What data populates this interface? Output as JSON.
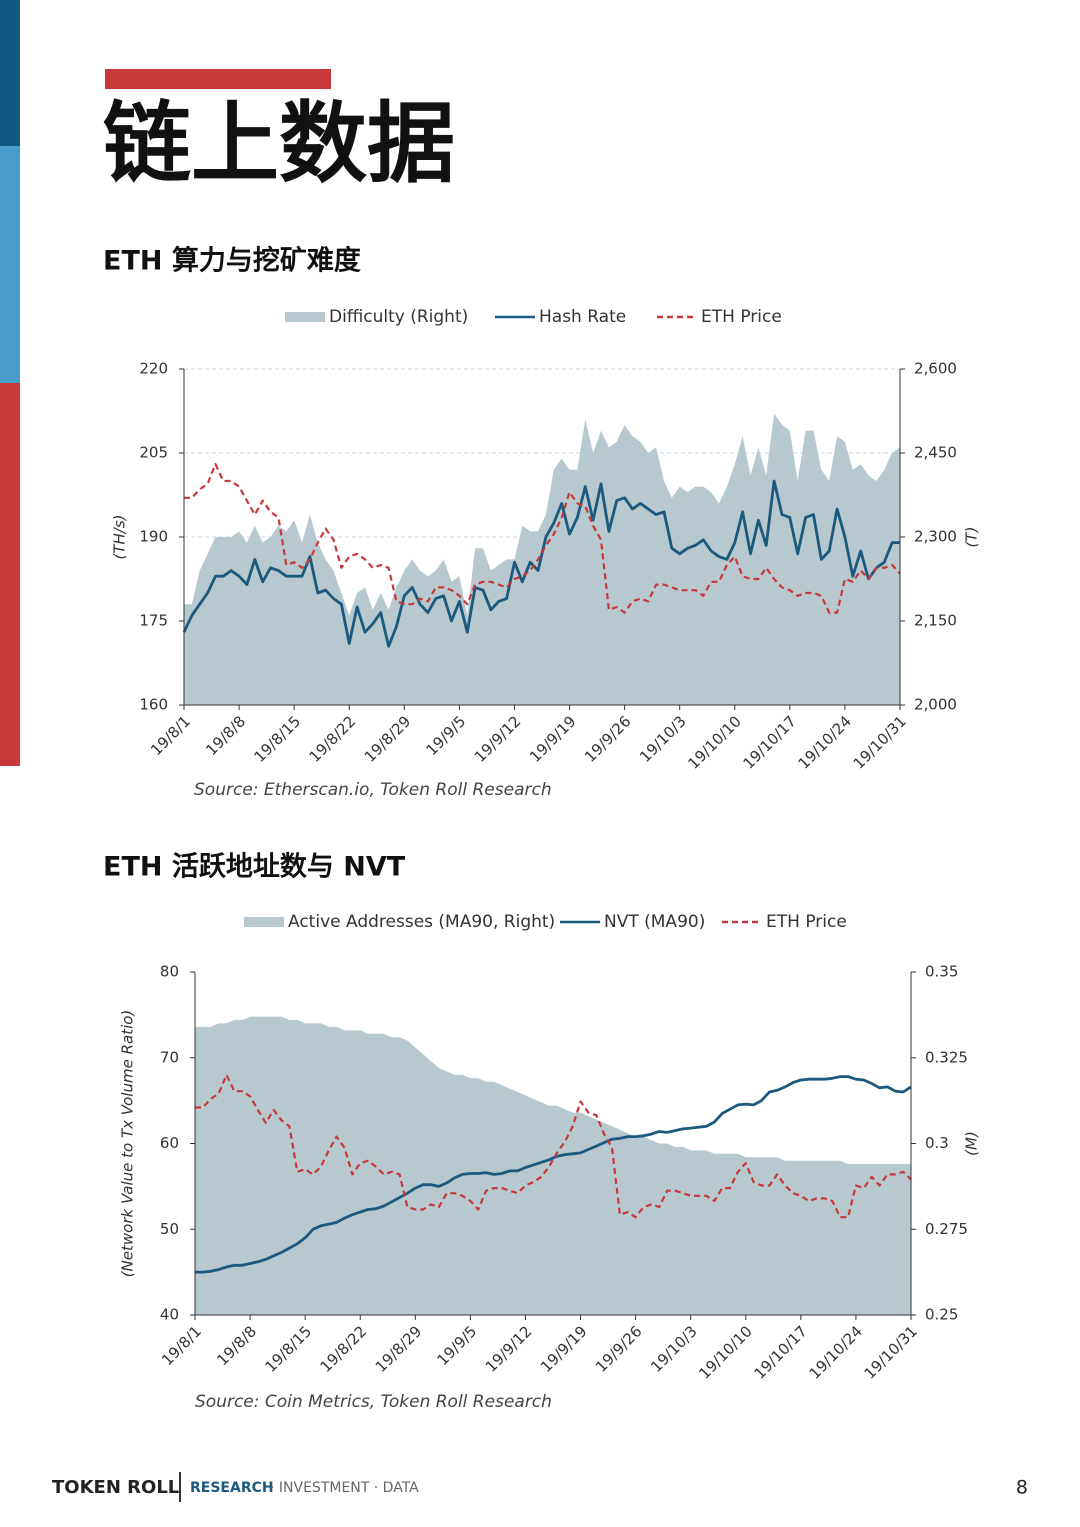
{
  "header": {
    "title": "链上数据"
  },
  "footer": {
    "brand": "TOKEN ROLL",
    "tagline_highlight": "RESEARCH",
    "tagline_rest": "· INVESTMENT · DATA",
    "page": "8"
  },
  "chart_data": [
    {
      "type": "line",
      "title": "ETH 算力与挖矿难度",
      "source": "Source: Etherscan.io, Token Roll Research",
      "y_label": "(TH/s)",
      "y2_label": "(T)",
      "grid": true,
      "categories": [
        "19/8/1",
        null,
        null,
        null,
        null,
        null,
        null,
        "19/8/8",
        null,
        null,
        null,
        null,
        null,
        null,
        "19/8/15",
        null,
        null,
        null,
        null,
        null,
        null,
        "19/8/22",
        null,
        null,
        null,
        null,
        null,
        null,
        "19/8/29",
        null,
        null,
        null,
        null,
        null,
        null,
        "19/9/5",
        null,
        null,
        null,
        null,
        null,
        null,
        "19/9/12",
        null,
        null,
        null,
        null,
        null,
        null,
        "19/9/19",
        null,
        null,
        null,
        null,
        null,
        null,
        "19/9/26",
        null,
        null,
        null,
        null,
        null,
        null,
        "19/10/3",
        null,
        null,
        null,
        null,
        null,
        null,
        "19/10/10",
        null,
        null,
        null,
        null,
        null,
        null,
        "19/10/17",
        null,
        null,
        null,
        null,
        null,
        null,
        "19/10/24",
        null,
        null,
        null,
        null,
        null,
        null,
        "19/10/31"
      ],
      "ylim": [
        160,
        220
      ],
      "yticks": [
        160,
        175,
        190,
        205,
        220
      ],
      "y2lim": [
        2000,
        2600
      ],
      "y2ticks": [
        {
          "value": 2000,
          "label": "2,000"
        },
        {
          "value": 2150,
          "label": "2,150"
        },
        {
          "value": 2300,
          "label": "2,300"
        },
        {
          "value": 2450,
          "label": "2,450"
        },
        {
          "value": 2600,
          "label": "2,600"
        }
      ],
      "series": [
        {
          "name": "Difficulty (Right)",
          "kind": "area",
          "axis": "y2",
          "color": "#b7c8ce",
          "values": [
            2180,
            2180,
            2240,
            2270,
            2300,
            2300,
            2300,
            2310,
            2290,
            2320,
            2290,
            2300,
            2320,
            2310,
            2330,
            2290,
            2340,
            2290,
            2260,
            2240,
            2200,
            2160,
            2200,
            2210,
            2170,
            2200,
            2170,
            2210,
            2240,
            2260,
            2240,
            2230,
            2240,
            2260,
            2220,
            2230,
            2160,
            2280,
            2280,
            2240,
            2250,
            2260,
            2260,
            2320,
            2310,
            2310,
            2340,
            2420,
            2440,
            2420,
            2420,
            2510,
            2450,
            2490,
            2460,
            2470,
            2500,
            2480,
            2470,
            2450,
            2460,
            2400,
            2370,
            2390,
            2380,
            2390,
            2390,
            2380,
            2360,
            2390,
            2430,
            2480,
            2410,
            2460,
            2410,
            2520,
            2500,
            2490,
            2400,
            2490,
            2490,
            2420,
            2400,
            2480,
            2470,
            2420,
            2430,
            2410,
            2400,
            2420,
            2450,
            2460
          ]
        },
        {
          "name": "Hash Rate",
          "kind": "line",
          "color": "#1b5a7e",
          "values": [
            173,
            176,
            178,
            180,
            183,
            183,
            184,
            183,
            181.5,
            186,
            182,
            184.5,
            184,
            183,
            183,
            183,
            186.5,
            180,
            180.5,
            179,
            178,
            171,
            177.5,
            173,
            174.5,
            176.5,
            170.5,
            174,
            179.5,
            181,
            178,
            176.5,
            179,
            179.5,
            175,
            178.5,
            173,
            181,
            180.5,
            177,
            178.5,
            179,
            185.5,
            182,
            185.5,
            184,
            190,
            192.5,
            196,
            190.5,
            193.5,
            199,
            193,
            199.5,
            191,
            196.5,
            197,
            195,
            196,
            195,
            194,
            194.5,
            188,
            187,
            188,
            188.5,
            189.5,
            187.5,
            186.5,
            186,
            189,
            194.5,
            187,
            193,
            188.5,
            200,
            194,
            193.5,
            187,
            193.5,
            194,
            186,
            187.5,
            195,
            190,
            183,
            187.5,
            182.5,
            184.5,
            185.5,
            189,
            189
          ]
        },
        {
          "name": "ETH Price",
          "kind": "dashed",
          "color": "#c8373a",
          "values": [
            197,
            197,
            198.5,
            199.5,
            203,
            200,
            200,
            199,
            196.5,
            194,
            196.5,
            194.5,
            193.5,
            185,
            185.5,
            184.5,
            186,
            189,
            191.5,
            189.5,
            184.5,
            186.5,
            187,
            186,
            184.5,
            185,
            184.5,
            178.5,
            178,
            178,
            179,
            178.5,
            181,
            181,
            180.5,
            179.5,
            178,
            181.5,
            182,
            182,
            181.5,
            181,
            182.5,
            183,
            184,
            186,
            188.5,
            190.5,
            193.5,
            198,
            196,
            195.5,
            192,
            189.5,
            177,
            177.5,
            176.5,
            178.5,
            179,
            178.5,
            181.5,
            181.5,
            181,
            180.5,
            180.5,
            180.5,
            179.5,
            182,
            182,
            185,
            186.5,
            183,
            182.5,
            182.5,
            184.5,
            182.5,
            181,
            180.5,
            179.5,
            180,
            180,
            179.5,
            176.5,
            176.5,
            182.5,
            182,
            184,
            182.5,
            184.5,
            184.5,
            185,
            183.5
          ]
        }
      ]
    },
    {
      "type": "line",
      "title": "ETH 活跃地址数与 NVT",
      "source": "Source: Coin Metrics, Token Roll Research",
      "y_label": "(Network Value to Tx Volume Ratio)",
      "y2_label": "(M)",
      "grid": false,
      "categories": [
        "19/8/1",
        null,
        null,
        null,
        null,
        null,
        null,
        "19/8/8",
        null,
        null,
        null,
        null,
        null,
        null,
        "19/8/15",
        null,
        null,
        null,
        null,
        null,
        null,
        "19/8/22",
        null,
        null,
        null,
        null,
        null,
        null,
        "19/8/29",
        null,
        null,
        null,
        null,
        null,
        null,
        "19/9/5",
        null,
        null,
        null,
        null,
        null,
        null,
        "19/9/12",
        null,
        null,
        null,
        null,
        null,
        null,
        "19/9/19",
        null,
        null,
        null,
        null,
        null,
        null,
        "19/9/26",
        null,
        null,
        null,
        null,
        null,
        null,
        "19/10/3",
        null,
        null,
        null,
        null,
        null,
        null,
        "19/10/10",
        null,
        null,
        null,
        null,
        null,
        null,
        "19/10/17",
        null,
        null,
        null,
        null,
        null,
        null,
        "19/10/24",
        null,
        null,
        null,
        null,
        null,
        null,
        "19/10/31"
      ],
      "ylim": [
        40,
        80
      ],
      "yticks": [
        40,
        50,
        60,
        70,
        80
      ],
      "y2lim": [
        0.25,
        0.35
      ],
      "y2ticks": [
        0.25,
        0.275,
        0.3,
        0.325,
        0.35
      ],
      "series": [
        {
          "name": "Active Addresses (MA90, Right)",
          "kind": "area",
          "axis": "y2",
          "color": "#b7c8ce",
          "values": [
            0.334,
            0.334,
            0.334,
            0.335,
            0.335,
            0.336,
            0.336,
            0.337,
            0.337,
            0.337,
            0.337,
            0.337,
            0.336,
            0.336,
            0.335,
            0.335,
            0.335,
            0.334,
            0.334,
            0.333,
            0.333,
            0.333,
            0.332,
            0.332,
            0.332,
            0.331,
            0.331,
            0.33,
            0.328,
            0.326,
            0.324,
            0.322,
            0.321,
            0.32,
            0.32,
            0.319,
            0.319,
            0.318,
            0.318,
            0.317,
            0.316,
            0.315,
            0.314,
            0.313,
            0.312,
            0.311,
            0.311,
            0.31,
            0.309,
            0.309,
            0.308,
            0.307,
            0.306,
            0.305,
            0.304,
            0.303,
            0.302,
            0.302,
            0.301,
            0.3,
            0.3,
            0.299,
            0.299,
            0.298,
            0.298,
            0.298,
            0.297,
            0.297,
            0.297,
            0.297,
            0.296,
            0.296,
            0.296,
            0.296,
            0.296,
            0.295,
            0.295,
            0.295,
            0.295,
            0.295,
            0.295,
            0.295,
            0.295,
            0.294,
            0.294,
            0.294,
            0.294,
            0.294,
            0.294,
            0.294,
            0.294,
            0.294
          ]
        },
        {
          "name": "NVT (MA90)",
          "kind": "line",
          "color": "#1b5a7e",
          "values": [
            45,
            45,
            45.1,
            45.3,
            45.6,
            45.8,
            45.8,
            46,
            46.2,
            46.5,
            46.9,
            47.3,
            47.8,
            48.3,
            49,
            50,
            50.4,
            50.6,
            50.8,
            51.3,
            51.7,
            52,
            52.3,
            52.4,
            52.7,
            53.2,
            53.7,
            54.2,
            54.8,
            55.2,
            55.2,
            55,
            55.4,
            56,
            56.4,
            56.5,
            56.5,
            56.6,
            56.4,
            56.5,
            56.8,
            56.8,
            57.2,
            57.5,
            57.8,
            58.1,
            58.5,
            58.7,
            58.8,
            58.9,
            59.3,
            59.7,
            60.1,
            60.5,
            60.6,
            60.8,
            60.8,
            60.9,
            61.1,
            61.4,
            61.3,
            61.5,
            61.7,
            61.8,
            61.9,
            62,
            62.5,
            63.5,
            64,
            64.5,
            64.6,
            64.5,
            65,
            66,
            66.2,
            66.6,
            67.1,
            67.4,
            67.5,
            67.5,
            67.5,
            67.6,
            67.8,
            67.8,
            67.5,
            67.4,
            67,
            66.5,
            66.6,
            66.1,
            66,
            66.6
          ]
        },
        {
          "name": "ETH Price",
          "kind": "dashed",
          "color": "#c8373a",
          "values": [
            64.2,
            64.2,
            65.2,
            65.8,
            68,
            66.1,
            66.1,
            65.5,
            63.9,
            62.4,
            63.9,
            62.7,
            62,
            56.7,
            57,
            56.4,
            57.3,
            59.2,
            60.8,
            59.5,
            56.4,
            57.7,
            58,
            57.3,
            56.4,
            56.7,
            56.4,
            52.6,
            52.3,
            52.3,
            52.9,
            52.6,
            54.2,
            54.2,
            53.9,
            53.3,
            52.3,
            54.5,
            54.8,
            54.8,
            54.5,
            54.2,
            55.1,
            55.5,
            56.1,
            57.3,
            58.9,
            60.2,
            62,
            64.9,
            63.6,
            63.3,
            61.1,
            59.5,
            51.7,
            52,
            51.4,
            52.6,
            52.9,
            52.6,
            54.5,
            54.5,
            54.2,
            53.9,
            53.9,
            53.9,
            53.3,
            54.8,
            54.8,
            56.7,
            57.7,
            55.5,
            55.1,
            55.1,
            56.4,
            55.1,
            54.2,
            53.9,
            53.3,
            53.6,
            53.6,
            53.3,
            51.4,
            51.4,
            55.1,
            54.8,
            56.1,
            55.1,
            56.4,
            56.4,
            56.7,
            55.8
          ]
        }
      ]
    }
  ]
}
